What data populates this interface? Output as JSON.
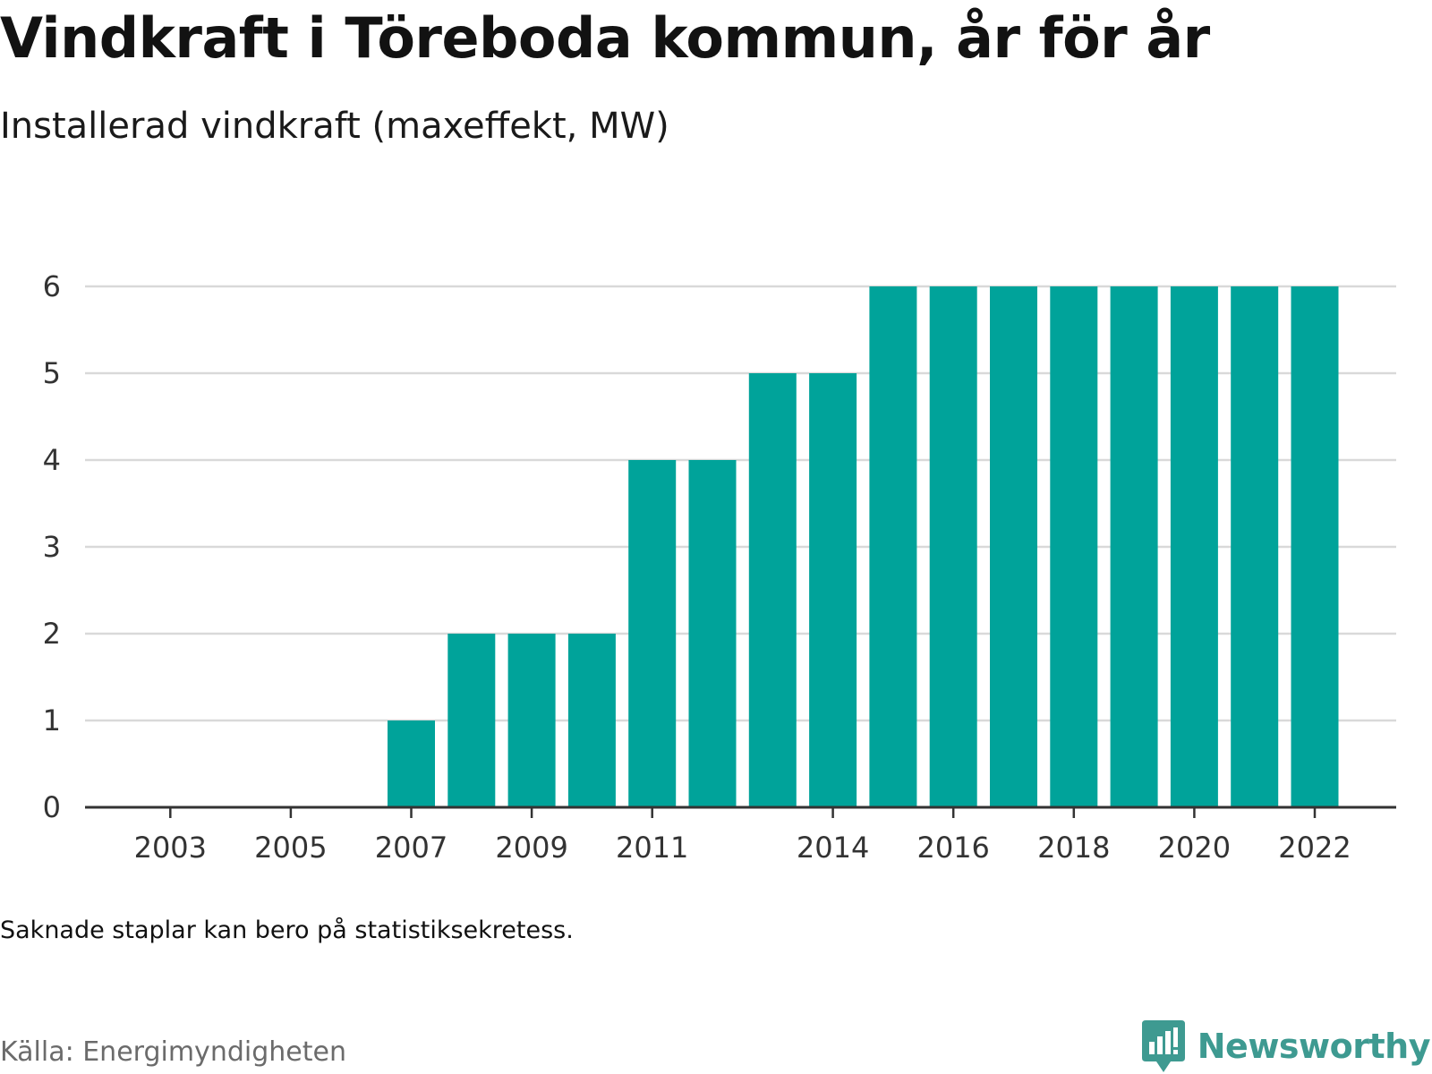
{
  "title": "Vindkraft i Töreboda kommun, år för år",
  "subtitle": "Installerad vindkraft (maxeffekt, MW)",
  "note": "Saknade staplar kan bero på statistiksekretess.",
  "source": "Källa: Energimyndigheten",
  "brand": {
    "name": "Newsworthy",
    "icon": "bar-chart-speech-bubble-icon",
    "color": "#3e9a91"
  },
  "chart_data": {
    "type": "bar",
    "categories": [
      "2002",
      "2003",
      "2004",
      "2005",
      "2006",
      "2007",
      "2008",
      "2009",
      "2010",
      "2011",
      "2012",
      "2013",
      "2014",
      "2015",
      "2016",
      "2017",
      "2018",
      "2019",
      "2020",
      "2021",
      "2022"
    ],
    "values": [
      0,
      0,
      0,
      0,
      0,
      1,
      2,
      2,
      2,
      4,
      4,
      5,
      5,
      6,
      6,
      6,
      6,
      6,
      6,
      6,
      6
    ],
    "x_tick_labels": [
      "2003",
      "2005",
      "2007",
      "2009",
      "2011",
      "2014",
      "2016",
      "2018",
      "2020",
      "2022"
    ],
    "y_ticks": [
      0,
      1,
      2,
      3,
      4,
      5,
      6
    ],
    "ylim": [
      0,
      6
    ],
    "bar_color": "#00a39a",
    "grid": true,
    "legend": "none"
  }
}
